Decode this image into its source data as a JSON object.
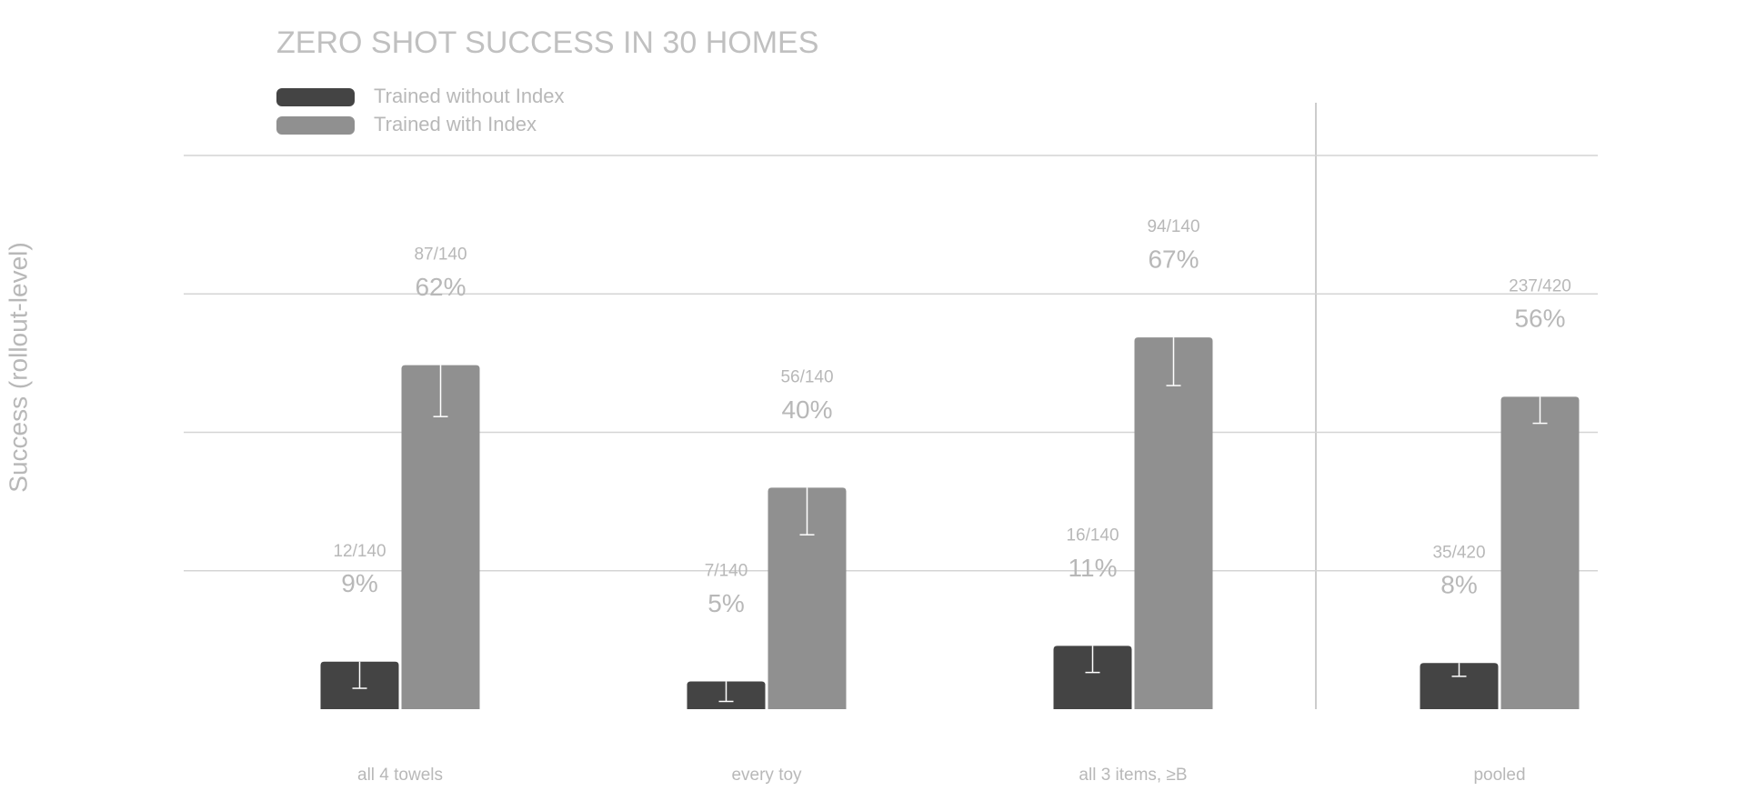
{
  "chart_data": {
    "type": "bar",
    "title": "ZERO SHOT SUCCESS IN 30 HOMES",
    "y_label": "Success (rollout-level)",
    "categories": [
      "all 4 towels",
      "every toy",
      "all 3 items, ≥B",
      "pooled"
    ],
    "series": [
      {
        "name": "Trained without Index",
        "color": "#444444",
        "values": [
          8.57,
          5,
          11.43,
          8.33
        ],
        "errors": [
          4.8,
          3.6,
          4.8,
          2.4
        ],
        "value_labels": [
          "9%",
          "5%",
          "11%",
          "8%"
        ],
        "count_labels": [
          "12/140",
          "7/140",
          "16/140",
          "35/420"
        ]
      },
      {
        "name": "Trained with Index",
        "color": "#909090",
        "values": [
          62.14,
          40,
          67.14,
          56.43
        ],
        "errors": [
          9.3,
          8.5,
          8.7,
          4.8
        ],
        "value_labels": [
          "62%",
          "40%",
          "67%",
          "56%"
        ],
        "count_labels": [
          "87/140",
          "56/140",
          "94/140",
          "237/420"
        ]
      }
    ],
    "ylim": [
      0,
      100
    ],
    "gridlines": [
      25,
      50,
      75,
      100
    ],
    "grid": true
  }
}
